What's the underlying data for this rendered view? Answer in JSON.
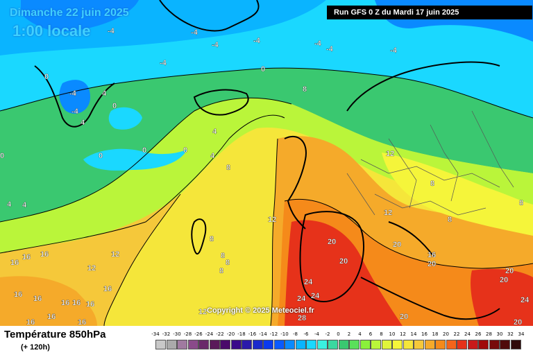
{
  "header": {
    "date": "Dimanche 22 juin 2025",
    "time": "1:00 locale",
    "run": "Run GFS 0 Z du Mardi 17 juin 2025"
  },
  "copyright": "Copyright © 2025 Meteociel.fr",
  "footer": {
    "parameter": "Température 850hPa",
    "lead": "(+ 120h)"
  },
  "legend": {
    "values": [
      "-34",
      "-32",
      "-30",
      "-28",
      "-26",
      "-24",
      "-22",
      "-20",
      "-18",
      "-16",
      "-14",
      "-12",
      "-10",
      "-8",
      "-6",
      "-4",
      "-2",
      "0",
      "2",
      "4",
      "6",
      "8",
      "10",
      "12",
      "14",
      "16",
      "18",
      "20",
      "22",
      "24",
      "26",
      "28",
      "30",
      "32",
      "34"
    ],
    "colors": [
      "#c8c8c8",
      "#aaaaaa",
      "#a07aa0",
      "#8a4a8a",
      "#6a2a6a",
      "#5a1a5a",
      "#4a0a6a",
      "#3a0a8a",
      "#2a1aaa",
      "#1a2acc",
      "#0a3aee",
      "#0a5aff",
      "#0a8aff",
      "#0ab4ff",
      "#1ad8ff",
      "#3af0e0",
      "#3ad8a0",
      "#3ac870",
      "#5ae05a",
      "#8af03a",
      "#baf53a",
      "#e0f53a",
      "#f5f53a",
      "#f5e63a",
      "#f5c83a",
      "#f5aa2a",
      "#f58a1a",
      "#f5641a",
      "#e6321a",
      "#c81a1a",
      "#a00a0a",
      "#780a0a",
      "#500a0a",
      "#300a0a"
    ]
  },
  "map": {
    "contour_labels": [
      "-4",
      "-4",
      "-4",
      "-4",
      "-4",
      "-4",
      "-4",
      "-4",
      "-4",
      "-4",
      "0",
      "0",
      "0",
      "0",
      "0",
      "0",
      "0",
      "4",
      "4",
      "4",
      "4",
      "4",
      "4",
      "8",
      "8",
      "8",
      "8",
      "8",
      "8",
      "8",
      "8",
      "8",
      "12",
      "12",
      "12",
      "12",
      "12",
      "12",
      "16",
      "16",
      "16",
      "16",
      "16",
      "16",
      "16",
      "16",
      "16",
      "16",
      "16",
      "16",
      "16",
      "20",
      "20",
      "20",
      "20",
      "20",
      "20",
      "20",
      "24",
      "24",
      "24",
      "24",
      "28",
      "20"
    ]
  }
}
